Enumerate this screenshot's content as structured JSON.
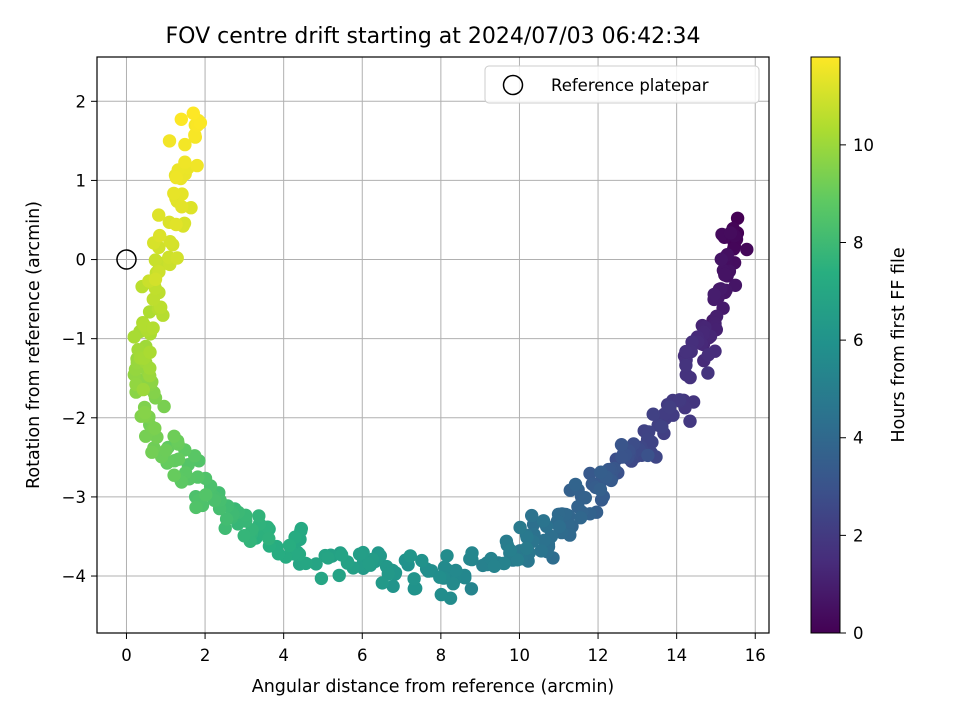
{
  "chart_data": {
    "type": "scatter",
    "title": "FOV centre drift starting at 2024/07/03 06:42:34",
    "xlabel": "Angular distance from reference (arcmin)",
    "ylabel": "Rotation from reference (arcmin)",
    "colorbar_label": "Hours from first FF file",
    "colormap": "viridis",
    "xlim": [
      -0.75,
      16.35
    ],
    "ylim": [
      -4.72,
      2.56
    ],
    "clim": [
      0,
      11.8
    ],
    "xticks": [
      "0",
      "2",
      "4",
      "6",
      "8",
      "10",
      "12",
      "14",
      "16"
    ],
    "yticks": [
      "−4",
      "−3",
      "−2",
      "−1",
      "0",
      "1",
      "2"
    ],
    "cbar_ticks": [
      "0",
      "2",
      "4",
      "6",
      "8",
      "10"
    ],
    "grid": true,
    "legend": {
      "position": "upper right",
      "entries": [
        "Reference platepar"
      ]
    },
    "reference_point": {
      "x": 0,
      "y": 0
    },
    "scatter_anchors": [
      {
        "x": 15.55,
        "y": 0.4,
        "h": 0.0
      },
      {
        "x": 15.3,
        "y": -0.05,
        "h": 0.5
      },
      {
        "x": 14.95,
        "y": -0.8,
        "h": 1.0
      },
      {
        "x": 14.6,
        "y": -1.1,
        "h": 1.5
      },
      {
        "x": 14.05,
        "y": -1.85,
        "h": 2.0
      },
      {
        "x": 13.15,
        "y": -2.45,
        "h": 2.5
      },
      {
        "x": 12.5,
        "y": -2.55,
        "h": 3.0
      },
      {
        "x": 11.9,
        "y": -2.95,
        "h": 3.5
      },
      {
        "x": 11.2,
        "y": -3.3,
        "h": 4.0
      },
      {
        "x": 10.4,
        "y": -3.55,
        "h": 4.5
      },
      {
        "x": 9.6,
        "y": -3.8,
        "h": 5.0
      },
      {
        "x": 8.4,
        "y": -3.95,
        "h": 5.5
      },
      {
        "x": 7.2,
        "y": -4.0,
        "h": 6.0
      },
      {
        "x": 6.0,
        "y": -3.85,
        "h": 6.5
      },
      {
        "x": 4.6,
        "y": -3.7,
        "h": 7.0
      },
      {
        "x": 3.4,
        "y": -3.5,
        "h": 7.5
      },
      {
        "x": 2.6,
        "y": -3.2,
        "h": 8.0
      },
      {
        "x": 1.8,
        "y": -2.85,
        "h": 8.5
      },
      {
        "x": 1.1,
        "y": -2.45,
        "h": 9.0
      },
      {
        "x": 0.5,
        "y": -1.9,
        "h": 9.5
      },
      {
        "x": 0.3,
        "y": -1.3,
        "h": 10.0
      },
      {
        "x": 0.7,
        "y": -0.65,
        "h": 10.5
      },
      {
        "x": 1.0,
        "y": 0.1,
        "h": 11.0
      },
      {
        "x": 1.35,
        "y": 1.0,
        "h": 11.4
      },
      {
        "x": 1.7,
        "y": 1.85,
        "h": 11.8
      }
    ]
  }
}
